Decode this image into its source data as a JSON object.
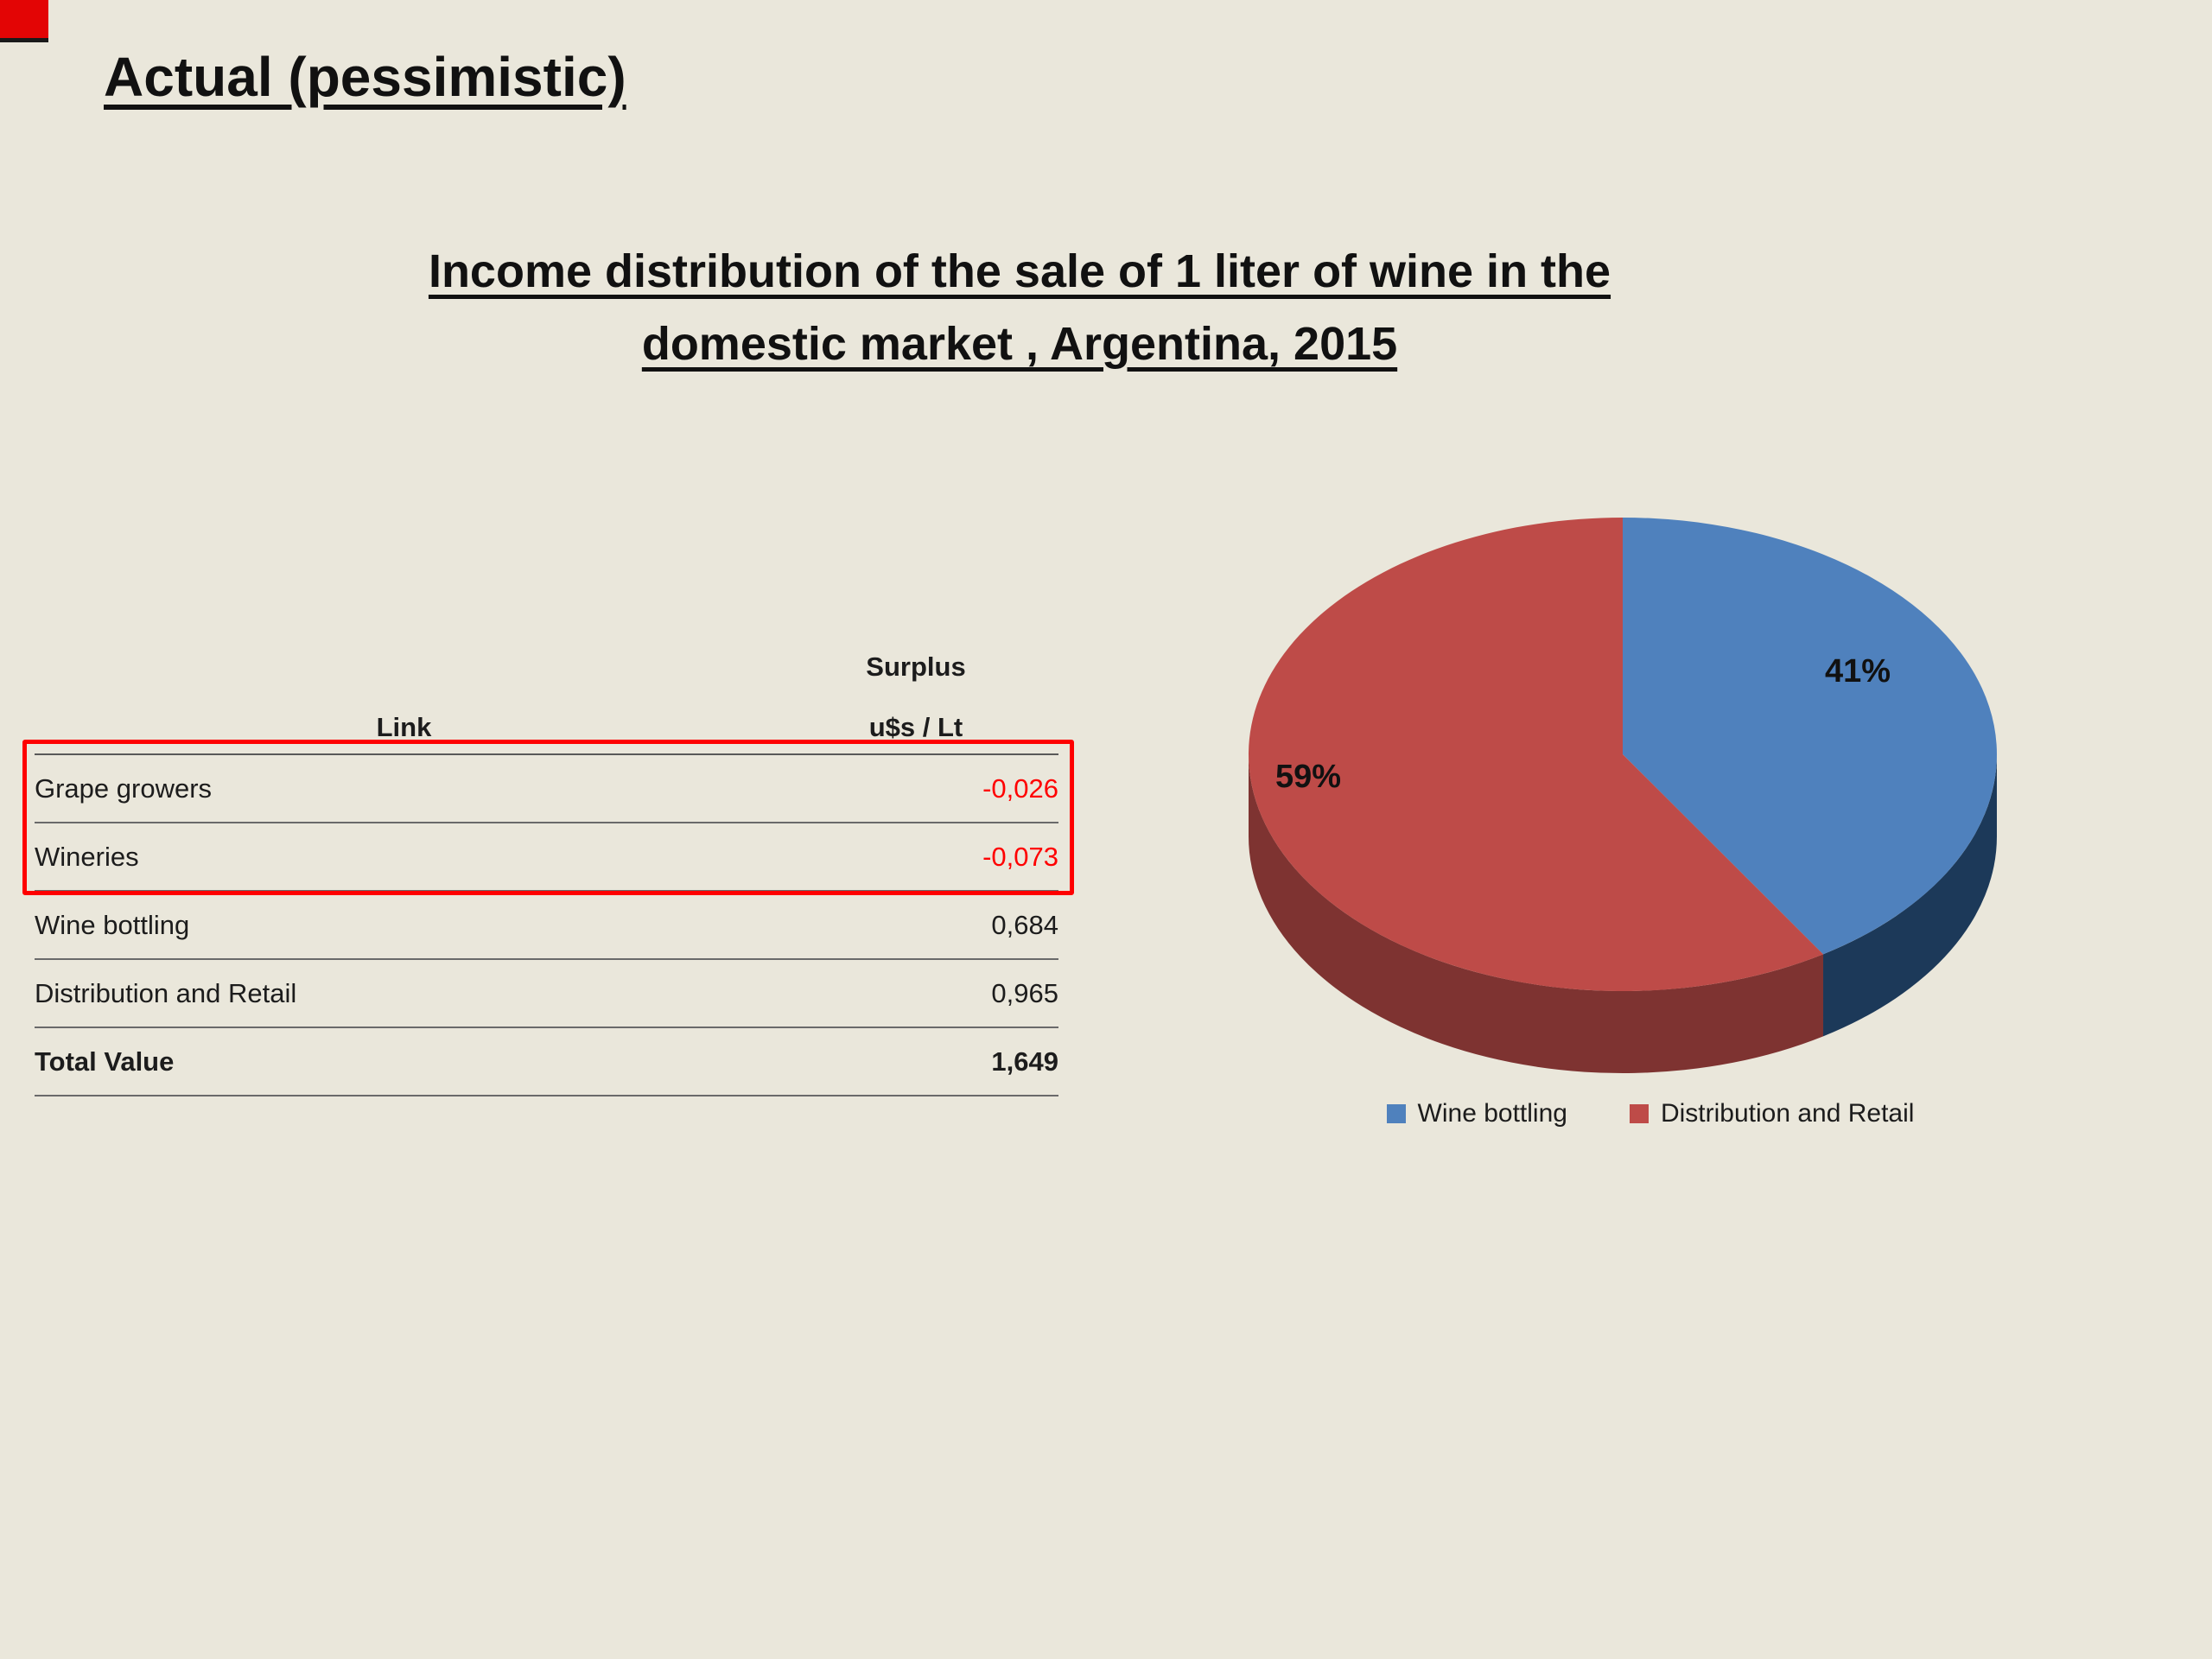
{
  "slide": {
    "title": "Actual (pessimistic)",
    "subtitle_line1": "Income distribution of the sale of 1 liter of wine in the",
    "subtitle_line2": "domestic market , Argentina, 2015",
    "background_color": "#EAE7DB",
    "corner_mark_color": "#E30505"
  },
  "table": {
    "header": {
      "col1": "Link",
      "col2_line1": "Surplus",
      "col2_line2": "u$s / Lt"
    },
    "rows": [
      {
        "label": "Grape growers",
        "value": "-0,026",
        "negative": true
      },
      {
        "label": "Wineries",
        "value": "-0,073",
        "negative": true
      },
      {
        "label": "Wine bottling",
        "value": "0,684",
        "negative": false
      },
      {
        "label": "Distribution and Retail",
        "value": "0,965",
        "negative": false
      }
    ],
    "total": {
      "label": "Total Value",
      "value": "1,649"
    },
    "highlight_box_color": "#FE0000",
    "negative_value_color": "#FF0000"
  },
  "chart_data": {
    "type": "pie",
    "title": "Income distribution of the sale of 1 liter of wine in the domestic market , Argentina, 2015",
    "labels": [
      "Wine bottling",
      "Distribution and Retail"
    ],
    "values": [
      41,
      59
    ],
    "labels_text": [
      "41%",
      "59%"
    ],
    "colors": [
      "#4F81BD",
      "#BE4B48"
    ],
    "side_colors": [
      "#1C3959",
      "#7E3331"
    ],
    "start_angle_deg": -90,
    "direction": "clockwise",
    "effect_3d": true,
    "legend_position": "bottom"
  }
}
